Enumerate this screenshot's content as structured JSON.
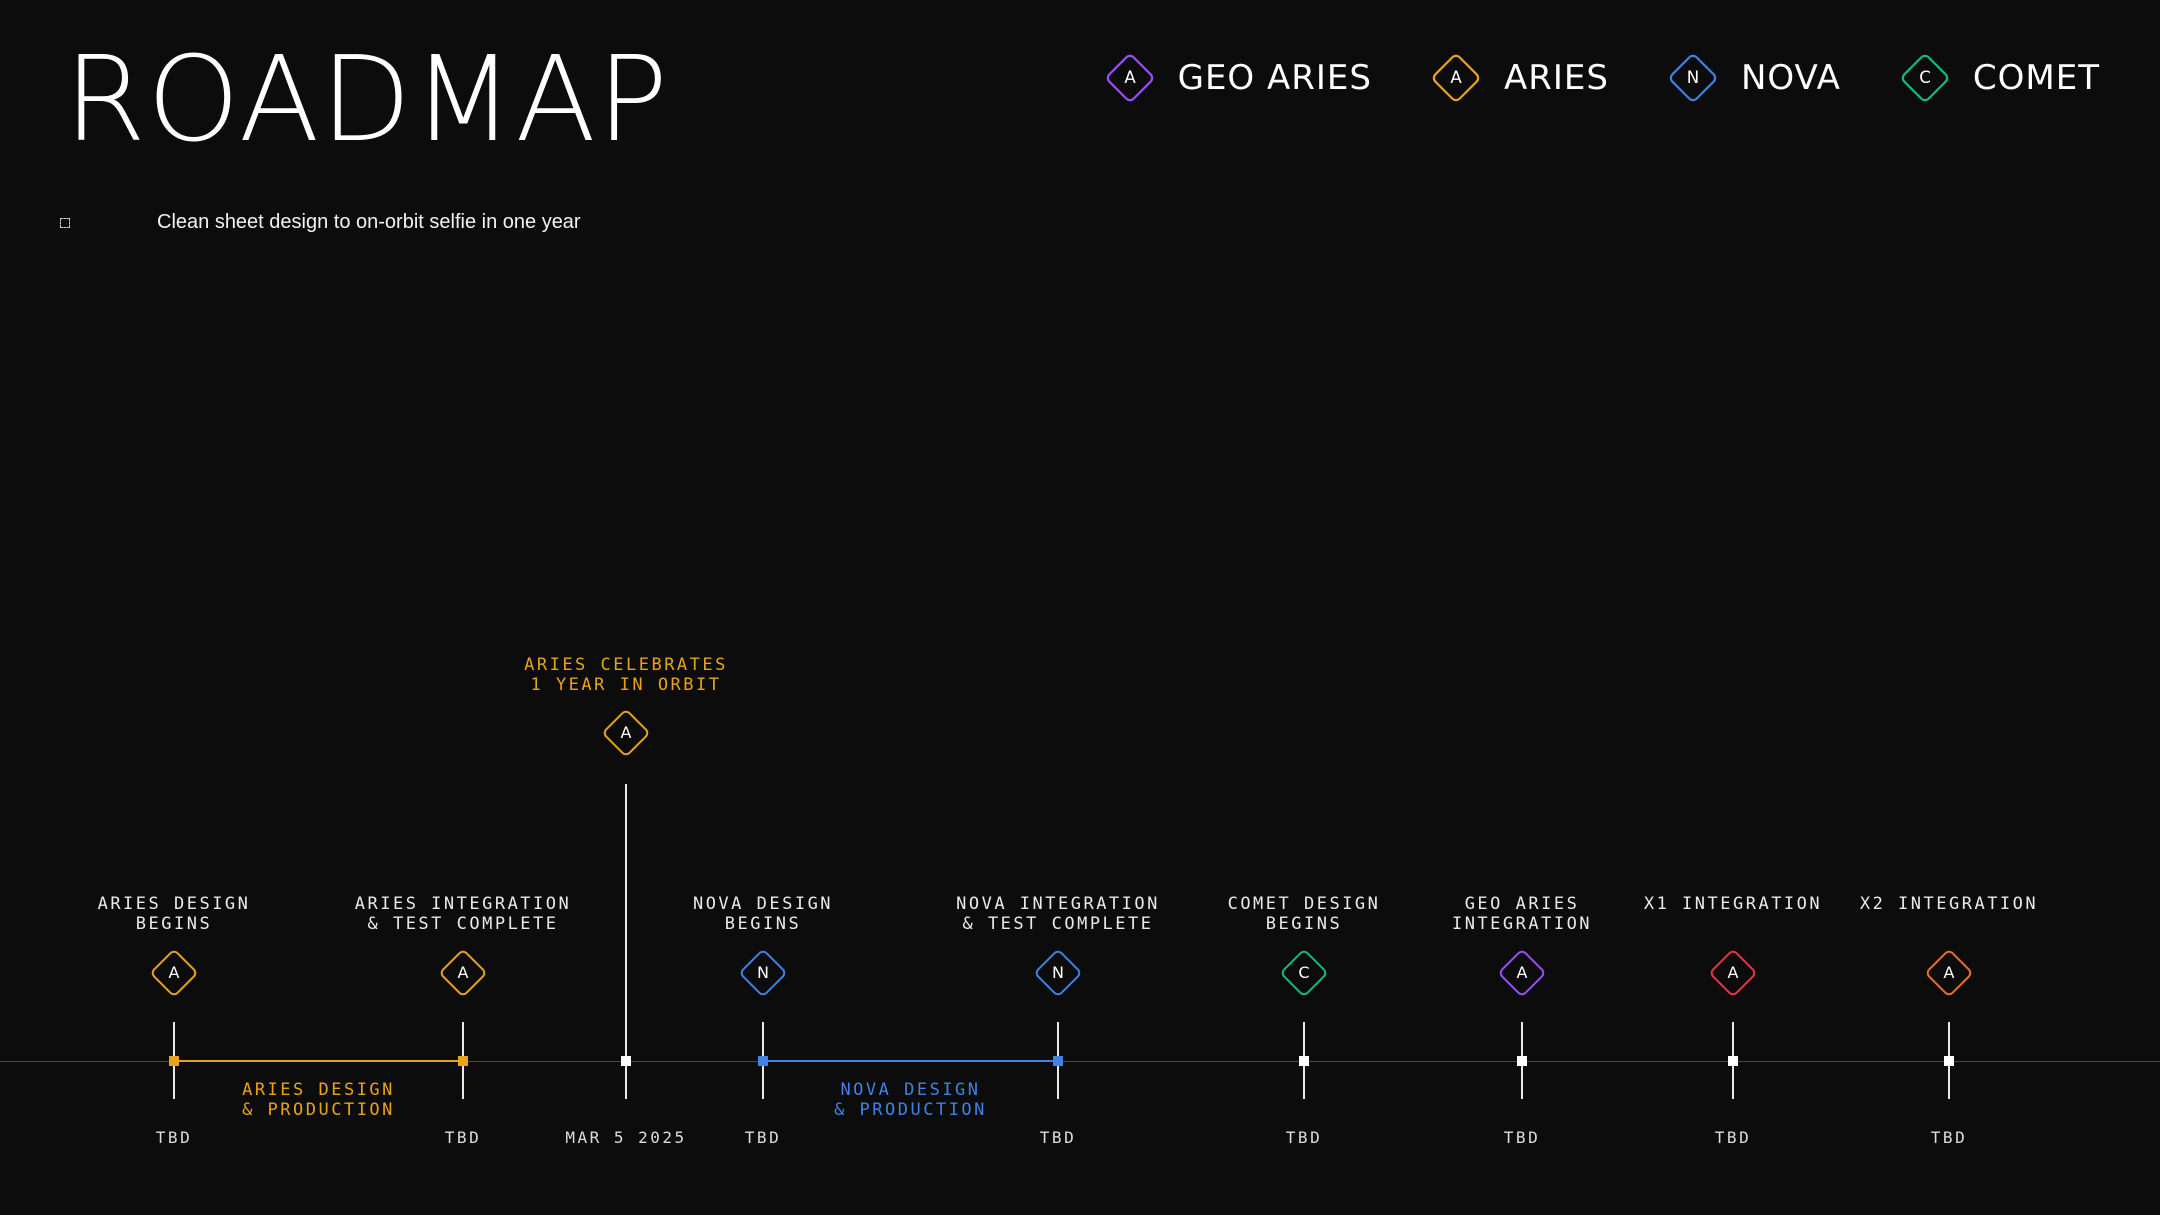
{
  "page": {
    "title": "ROADMAP",
    "subtitle": "Clean sheet design to on-orbit selfie in one year"
  },
  "colors": {
    "background": "#0c0c0c",
    "geo_aries": "#9b4dff",
    "aries": "#e8a317",
    "nova": "#3e82e6",
    "comet": "#14b887",
    "x1": "#e8334a",
    "x2": "#f06a2a",
    "axis": "#4a4a4a"
  },
  "legend": [
    {
      "label": "GEO ARIES",
      "letter": "A",
      "color": "#9b4dff",
      "icon": "geo-aries-diamond-icon"
    },
    {
      "label": "ARIES",
      "letter": "A",
      "color": "#e8a317",
      "icon": "aries-diamond-icon"
    },
    {
      "label": "NOVA",
      "letter": "N",
      "color": "#3e82e6",
      "icon": "nova-diamond-icon"
    },
    {
      "label": "COMET",
      "letter": "C",
      "color": "#14b887",
      "icon": "comet-diamond-icon"
    }
  ],
  "highlight": {
    "label": "ARIES CELEBRATES\n1 YEAR IN ORBIT",
    "letter": "A",
    "color": "#e8a317",
    "date": "MAR 5 2025"
  },
  "milestones": [
    {
      "key": "aries-design-begins",
      "label": "ARIES DESIGN\nBEGINS",
      "letter": "A",
      "color": "#e8a317",
      "date": "TBD"
    },
    {
      "key": "aries-integration",
      "label": "ARIES INTEGRATION\n& TEST COMPLETE",
      "letter": "A",
      "color": "#e8a317",
      "date": "TBD"
    },
    {
      "key": "nova-design-begins",
      "label": "NOVA DESIGN\nBEGINS",
      "letter": "N",
      "color": "#3e82e6",
      "date": "TBD"
    },
    {
      "key": "nova-integration",
      "label": "NOVA INTEGRATION\n& TEST COMPLETE",
      "letter": "N",
      "color": "#3e82e6",
      "date": "TBD"
    },
    {
      "key": "comet-design-begins",
      "label": "COMET DESIGN\nBEGINS",
      "letter": "C",
      "color": "#14b887",
      "date": "TBD"
    },
    {
      "key": "geo-aries-integration",
      "label": "GEO ARIES\nINTEGRATION",
      "letter": "A",
      "color": "#9b4dff",
      "date": "TBD"
    },
    {
      "key": "x1-integration",
      "label": "X1 INTEGRATION",
      "letter": "A",
      "color": "#e8334a",
      "date": "TBD"
    },
    {
      "key": "x2-integration",
      "label": "X2 INTEGRATION",
      "letter": "A",
      "color": "#f06a2a",
      "date": "TBD"
    }
  ],
  "ranges": [
    {
      "key": "aries-design-production",
      "label": "ARIES DESIGN\n& PRODUCTION",
      "color": "#e8a317"
    },
    {
      "key": "nova-design-production",
      "label": "NOVA DESIGN\n& PRODUCTION",
      "color": "#3e82e6"
    }
  ]
}
